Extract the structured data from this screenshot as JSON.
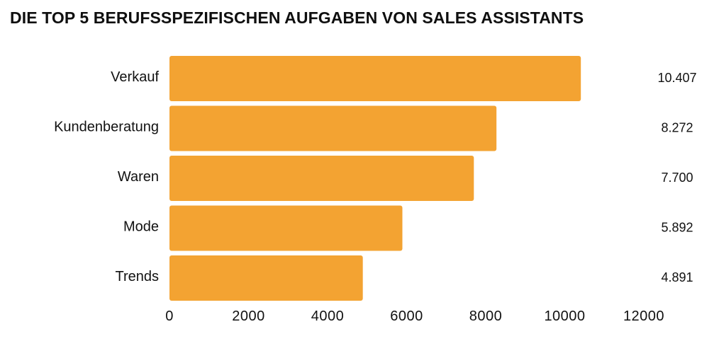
{
  "chart_data": {
    "type": "bar",
    "orientation": "horizontal",
    "title": "DIE TOP 5 BERUFSSPEZIFISCHEN AUFGABEN VON SALES ASSISTANTS",
    "categories": [
      "Verkauf",
      "Kundenberatung",
      "Waren",
      "Mode",
      "Trends"
    ],
    "values": [
      10407,
      8272,
      7700,
      5892,
      4891
    ],
    "value_labels": [
      "10.407",
      "8.272",
      "7.700",
      "5.892",
      "4.891"
    ],
    "xlim": [
      0,
      12000
    ],
    "x_ticks": [
      0,
      2000,
      4000,
      6000,
      8000,
      10000,
      12000
    ],
    "x_tick_labels": [
      "0",
      "2000",
      "4000",
      "6000",
      "8000",
      "10000",
      "12000"
    ],
    "xlabel": "",
    "ylabel": "",
    "grid": false,
    "legend": "none",
    "bar_color": "#F3A332"
  }
}
